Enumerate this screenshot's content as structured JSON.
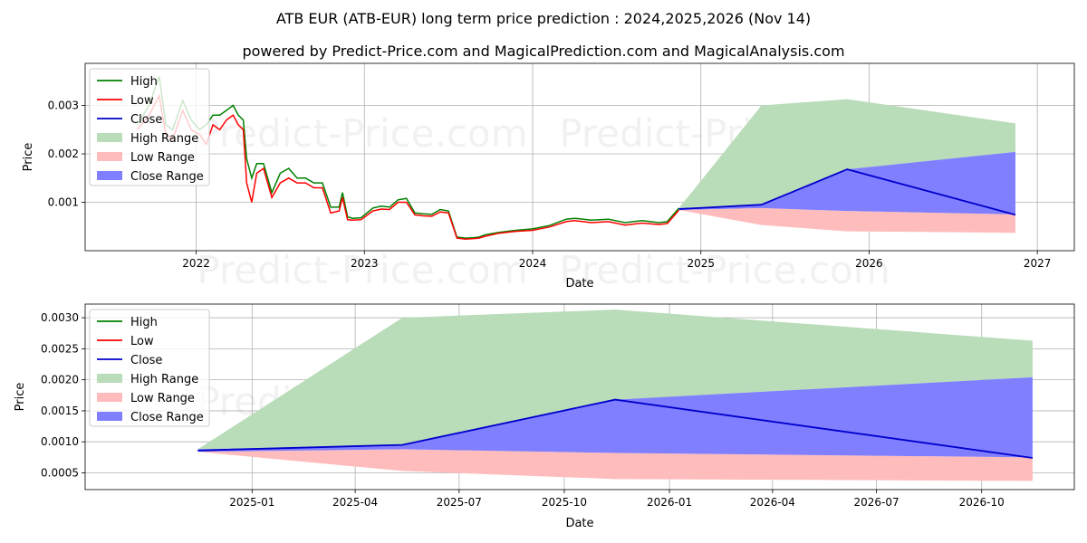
{
  "title": "ATB EUR (ATB-EUR) long term price prediction : 2024,2025,2026 (Nov 14)",
  "subtitle": "powered by Predict-Price.com and MagicalPrediction.com and MagicalAnalysis.com",
  "watermark": "Predict-Price.com",
  "colors": {
    "high": "#008000",
    "low": "#ff0000",
    "close": "#0000cc",
    "high_range": "#b9dcb9",
    "low_range": "#ffbcbc",
    "close_range": "#7f7fff",
    "grid": "#b0b0b0"
  },
  "legend": [
    "High",
    "Low",
    "Close",
    "High Range",
    "Low Range",
    "Close Range"
  ],
  "chart_data": [
    {
      "type": "line",
      "id": "top",
      "xlabel": "Date",
      "ylabel": "Price",
      "xlim": [
        2021.34,
        2027.22
      ],
      "ylim": [
        0.0,
        0.00387
      ],
      "xticks": [
        2022,
        2023,
        2024,
        2025,
        2026,
        2027
      ],
      "xtick_labels": [
        "2022",
        "2023",
        "2024",
        "2025",
        "2026",
        "2027"
      ],
      "yticks": [
        0.001,
        0.002,
        0.003
      ],
      "ytick_labels": [
        "0.001",
        "0.002",
        "0.003"
      ],
      "history": {
        "x": [
          2021.65,
          2021.72,
          2021.78,
          2021.82,
          2021.86,
          2021.92,
          2021.97,
          2022.02,
          2022.06,
          2022.1,
          2022.14,
          2022.18,
          2022.22,
          2022.25,
          2022.28,
          2022.3,
          2022.33,
          2022.36,
          2022.4,
          2022.45,
          2022.5,
          2022.55,
          2022.6,
          2022.65,
          2022.7,
          2022.75,
          2022.8,
          2022.85,
          2022.87,
          2022.9,
          2022.93,
          2022.98,
          2023.05,
          2023.1,
          2023.15,
          2023.2,
          2023.25,
          2023.3,
          2023.35,
          2023.4,
          2023.45,
          2023.5,
          2023.55,
          2023.6,
          2023.65,
          2023.68,
          2023.72,
          2023.8,
          2023.9,
          2024.0,
          2024.1,
          2024.2,
          2024.25,
          2024.35,
          2024.45,
          2024.55,
          2024.65,
          2024.75,
          2024.8,
          2024.87
        ],
        "high": [
          0.0026,
          0.003,
          0.0036,
          0.0026,
          0.0025,
          0.0031,
          0.0027,
          0.0025,
          0.0026,
          0.0028,
          0.0028,
          0.0029,
          0.003,
          0.0028,
          0.0027,
          0.0019,
          0.0015,
          0.0018,
          0.0018,
          0.0012,
          0.0016,
          0.0017,
          0.0015,
          0.0015,
          0.0014,
          0.0014,
          0.0009,
          0.0009,
          0.0012,
          0.0007,
          0.00067,
          0.00068,
          0.00088,
          0.00092,
          0.0009,
          0.00105,
          0.00108,
          0.00078,
          0.00076,
          0.00075,
          0.00085,
          0.00082,
          0.00028,
          0.00026,
          0.00027,
          0.00028,
          0.00033,
          0.00038,
          0.00042,
          0.00045,
          0.00052,
          0.00065,
          0.00067,
          0.00063,
          0.00065,
          0.00058,
          0.00062,
          0.00058,
          0.0006,
          0.00088
        ],
        "low": [
          0.0025,
          0.0028,
          0.0032,
          0.0024,
          0.0023,
          0.0029,
          0.0025,
          0.0024,
          0.0022,
          0.0026,
          0.0025,
          0.0027,
          0.0028,
          0.0026,
          0.0025,
          0.0014,
          0.001,
          0.0016,
          0.0017,
          0.0011,
          0.0014,
          0.0015,
          0.0014,
          0.0014,
          0.0013,
          0.0013,
          0.00078,
          0.00082,
          0.0011,
          0.00064,
          0.00063,
          0.00064,
          0.00082,
          0.00086,
          0.00085,
          0.001,
          0.001,
          0.00074,
          0.00072,
          0.00071,
          0.0008,
          0.00078,
          0.00026,
          0.00024,
          0.00025,
          0.00026,
          0.0003,
          0.00036,
          0.0004,
          0.00042,
          0.00049,
          0.0006,
          0.00062,
          0.00058,
          0.0006,
          0.00053,
          0.00057,
          0.00054,
          0.00056,
          0.00084
        ]
      },
      "forecast": {
        "x": [
          2024.87,
          2025.36,
          2025.87,
          2026.87
        ],
        "high_range_upper": [
          0.00088,
          0.003,
          0.00313,
          0.00263
        ],
        "low_range_lower": [
          0.00084,
          0.00053,
          0.0004,
          0.00037
        ],
        "close_range_upper": [
          0.00088,
          0.00095,
          0.00168,
          0.00204
        ],
        "close_range_lower": [
          0.00084,
          0.00088,
          0.00082,
          0.00075
        ],
        "close": [
          0.00086,
          0.00095,
          0.00168,
          0.00074
        ]
      }
    },
    {
      "type": "line",
      "id": "bottom",
      "xlabel": "Date",
      "ylabel": "Price",
      "xlim": [
        2024.6,
        2026.97
      ],
      "ylim": [
        0.00023,
        0.00322
      ],
      "xticks": [
        2025.0,
        2025.247,
        2025.496,
        2025.748,
        2026.0,
        2026.247,
        2026.496,
        2026.748
      ],
      "xtick_labels": [
        "2025-01",
        "2025-04",
        "2025-07",
        "2025-10",
        "2026-01",
        "2026-04",
        "2026-07",
        "2026-10"
      ],
      "yticks": [
        0.0005,
        0.001,
        0.0015,
        0.002,
        0.0025,
        0.003
      ],
      "ytick_labels": [
        "0.0005",
        "0.0010",
        "0.0015",
        "0.0020",
        "0.0025",
        "0.0030"
      ],
      "forecast": {
        "x": [
          2024.87,
          2025.36,
          2025.87,
          2026.87
        ],
        "high_range_upper": [
          0.00088,
          0.003,
          0.00313,
          0.00263
        ],
        "low_range_lower": [
          0.00084,
          0.00053,
          0.0004,
          0.00037
        ],
        "close_range_upper": [
          0.00088,
          0.00095,
          0.00168,
          0.00204
        ],
        "close_range_lower": [
          0.00084,
          0.00088,
          0.00082,
          0.00075
        ],
        "close": [
          0.00086,
          0.00095,
          0.00168,
          0.00074
        ]
      }
    }
  ]
}
